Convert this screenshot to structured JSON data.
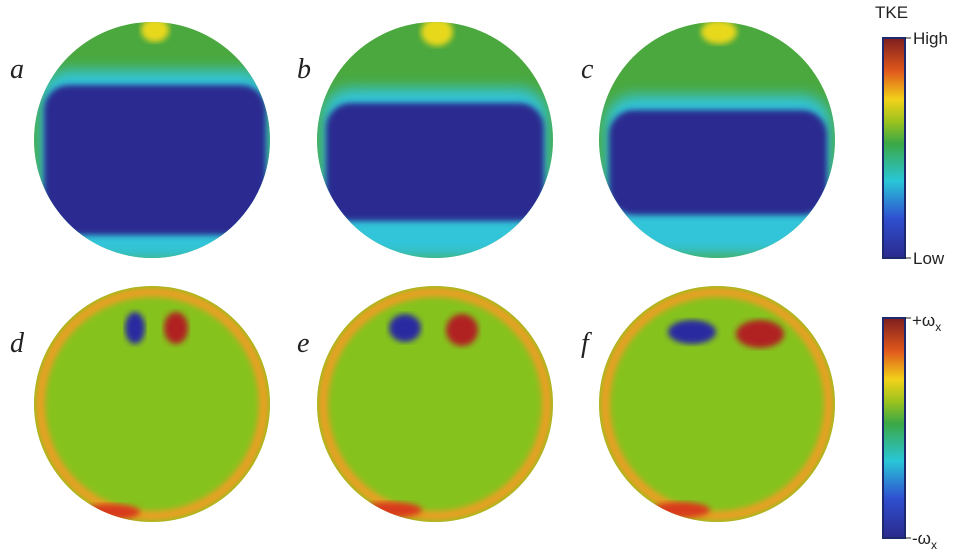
{
  "panels": [
    {
      "label": "a"
    },
    {
      "label": "b"
    },
    {
      "label": "c"
    },
    {
      "label": "d"
    },
    {
      "label": "e"
    },
    {
      "label": "f"
    }
  ],
  "colorbar_tke": {
    "title": "TKE",
    "top": "High",
    "bottom": "Low"
  },
  "colorbar_vorticity": {
    "top": {
      "text": "+ω",
      "sub": "x"
    },
    "bottom": {
      "text": "-ω",
      "sub": "x"
    }
  }
}
